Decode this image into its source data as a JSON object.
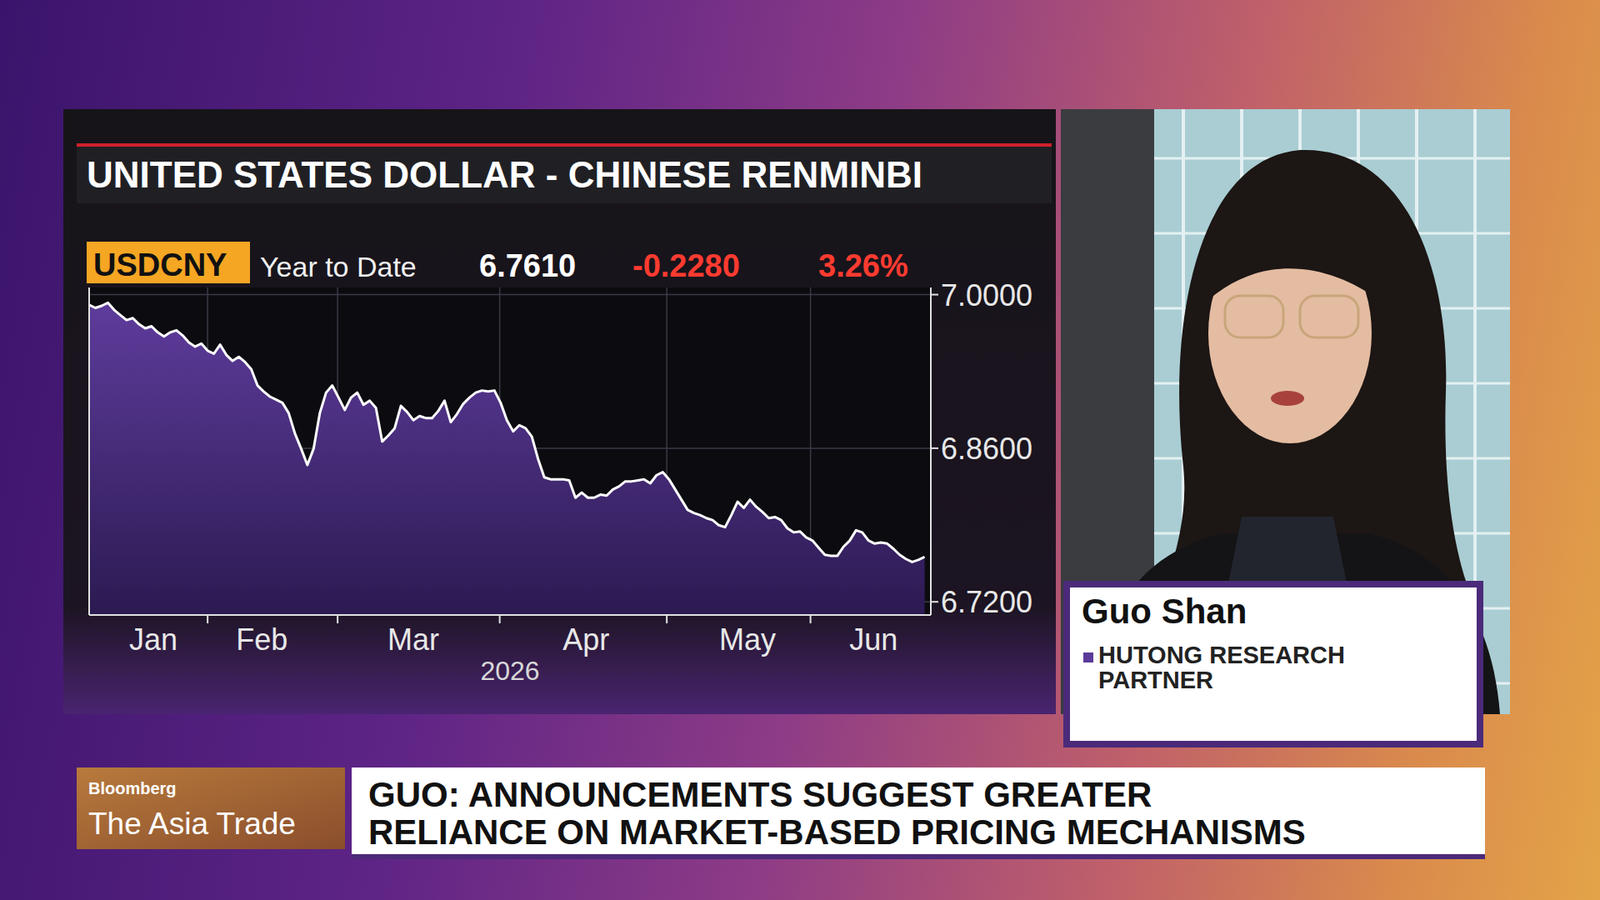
{
  "chart_data": {
    "type": "area",
    "title": "UNITED STATES DOLLAR - CHINESE RENMINBI",
    "ticker": "USDCNY",
    "period": "Year to Date",
    "last": "6.7610",
    "change": "-0.2280",
    "change_pct": "3.26%",
    "color": "#ffffff",
    "grid": true,
    "xlabel": "2026",
    "x": [
      0,
      1,
      2,
      3,
      4,
      5,
      6,
      7,
      8,
      9,
      10,
      11,
      12,
      13,
      14,
      15,
      16,
      17,
      18,
      19,
      20,
      21,
      22,
      23,
      24,
      25,
      26,
      27,
      28,
      29,
      30,
      31,
      32,
      33,
      34,
      35,
      36,
      37,
      38,
      39,
      40,
      41,
      42,
      43,
      44,
      45,
      46,
      47,
      48,
      49,
      50,
      51,
      52,
      53,
      54,
      55,
      56,
      57,
      58,
      59,
      60,
      61,
      62,
      63,
      64,
      65,
      66,
      67,
      68,
      69,
      70,
      71,
      72,
      73,
      74,
      75,
      76,
      77,
      78,
      79,
      80,
      81,
      82,
      83,
      84,
      85,
      86,
      87,
      88,
      89,
      90,
      91,
      92,
      93,
      94,
      95,
      96,
      97,
      98,
      99,
      100,
      101,
      102,
      103,
      104,
      105,
      106,
      107,
      108,
      109,
      110,
      111,
      112,
      113,
      114,
      115,
      116,
      117,
      118,
      119,
      120,
      121,
      122,
      123,
      124,
      125,
      126,
      127,
      128,
      129,
      130,
      131,
      132,
      133,
      134
    ],
    "values": [
      6.9907,
      6.9879,
      6.9898,
      6.9926,
      6.9861,
      6.9814,
      6.9768,
      6.9786,
      6.973,
      6.9693,
      6.9712,
      6.9656,
      6.9619,
      6.9656,
      6.9675,
      6.9628,
      6.9563,
      6.9526,
      6.9554,
      6.9489,
      6.9461,
      6.9544,
      6.9451,
      6.9396,
      6.9433,
      6.9386,
      6.9321,
      6.9172,
      6.9117,
      6.907,
      6.9042,
      6.9014,
      6.8921,
      6.8735,
      6.8596,
      6.8447,
      6.8596,
      6.8921,
      6.9107,
      6.9172,
      6.9061,
      6.8949,
      6.9061,
      6.9107,
      6.8996,
      6.9033,
      6.8968,
      6.8661,
      6.8717,
      6.8782,
      6.8986,
      6.893,
      6.8856,
      6.8893,
      6.8875,
      6.8875,
      6.894,
      6.9033,
      6.8838,
      6.8912,
      6.9005,
      6.9061,
      6.9107,
      6.9126,
      6.9117,
      6.9126,
      6.9014,
      6.8856,
      6.8754,
      6.881,
      6.8782,
      6.8707,
      6.8503,
      6.8335,
      6.8317,
      6.8317,
      6.8317,
      6.8307,
      6.8149,
      6.8196,
      6.8149,
      6.8149,
      6.8177,
      6.8168,
      6.8224,
      6.8252,
      6.8298,
      6.8298,
      6.8307,
      6.8317,
      6.828,
      6.8354,
      6.8382,
      6.8317,
      6.8224,
      6.8131,
      6.8038,
      6.801,
      6.7991,
      6.7963,
      6.7945,
      6.7898,
      6.788,
      6.7991,
      6.8112,
      6.8056,
      6.8131,
      6.8066,
      6.8019,
      6.7963,
      6.7973,
      6.7945,
      6.787,
      6.7833,
      6.7842,
      6.7787,
      6.7759,
      6.7694,
      6.7629,
      6.7619,
      6.7619,
      6.7703,
      6.7759,
      6.7852,
      6.7833,
      6.7759,
      6.7731,
      6.774,
      6.7731,
      6.7684,
      6.7629,
      6.7591,
      6.7563,
      6.7582,
      6.761
    ],
    "xlim": [
      0,
      135
    ],
    "xticks": [
      {
        "value": 10.3,
        "label": "Jan"
      },
      {
        "value": 27.7,
        "label": "Feb"
      },
      {
        "value": 52,
        "label": "Mar"
      },
      {
        "value": 79.7,
        "label": "Apr"
      },
      {
        "value": 105.6,
        "label": "May"
      },
      {
        "value": 125.8,
        "label": "Jun"
      }
    ],
    "ylim": [
      6.708,
      7.0065
    ],
    "yticks": [
      {
        "value": 6.72,
        "label": "6.7200"
      },
      {
        "value": 6.86,
        "label": "6.8600"
      },
      {
        "value": 7,
        "label": "7.0000"
      }
    ]
  },
  "page": {
    "brand": "Bloomberg",
    "show": "The Asia Trade",
    "guest_name": "Guo Shan",
    "guest_title": "HUTONG RESEARCH PARTNER",
    "headline": [
      "GUO: ANNOUNCEMENTS SUGGEST GREATER",
      "RELIANCE ON MARKET-BASED PRICING MECHANISMS"
    ]
  }
}
